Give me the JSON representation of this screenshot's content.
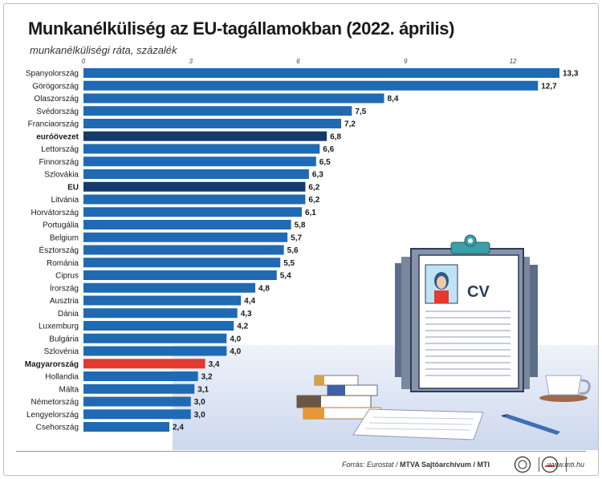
{
  "title": "Munkanélküliség az EU-tagállamokban (2022. április)",
  "subtitle": "munkanélküliségi ráta, százalék",
  "colors": {
    "bar": "#1f6ab3",
    "bar_highlight": "#163a6b",
    "bar_hungary": "#e23a2e",
    "text": "#1a1a1a"
  },
  "chart_data": {
    "type": "bar",
    "orientation": "horizontal",
    "xlim": [
      0,
      13.3
    ],
    "ticks": [
      0,
      3,
      6,
      9,
      12
    ],
    "tick_labels": [
      "0",
      "3",
      "6",
      "9",
      "12"
    ],
    "grid": false,
    "categories": [
      "Spanyolország",
      "Görögország",
      "Olaszország",
      "Svédország",
      "Franciaország",
      "euróövezet",
      "Lettország",
      "Finnország",
      "Szlovákia",
      "EU",
      "Litvánia",
      "Horvátország",
      "Portugália",
      "Belgium",
      "Észtország",
      "Románia",
      "Ciprus",
      "Írország",
      "Ausztria",
      "Dánia",
      "Luxemburg",
      "Bulgária",
      "Szlovénia",
      "Magyarország",
      "Hollandia",
      "Málta",
      "Németország",
      "Lengyelország",
      "Csehország"
    ],
    "values": [
      13.3,
      12.7,
      8.4,
      7.5,
      7.2,
      6.8,
      6.6,
      6.5,
      6.3,
      6.2,
      6.2,
      6.1,
      5.8,
      5.7,
      5.6,
      5.5,
      5.4,
      4.8,
      4.4,
      4.3,
      4.2,
      4.0,
      4.0,
      3.4,
      3.2,
      3.1,
      3.0,
      3.0,
      2.4
    ],
    "value_labels": [
      "13,3",
      "12,7",
      "8,4",
      "7,5",
      "7,2",
      "6,8",
      "6,6",
      "6,5",
      "6,3",
      "6,2",
      "6,2",
      "6,1",
      "5,8",
      "5,7",
      "5,6",
      "5,5",
      "5,4",
      "4,8",
      "4,4",
      "4,3",
      "4,2",
      "4,0",
      "4,0",
      "3,4",
      "3,2",
      "3,1",
      "3,0",
      "3,0",
      "2,4"
    ],
    "highlight_dark": [
      "euróövezet",
      "EU"
    ],
    "highlight_red": [
      "Magyarország"
    ]
  },
  "illustration": {
    "cv_label": "CV",
    "icons": [
      "clipboard-icon",
      "cv-portrait-icon",
      "book-stack-icon",
      "coffee-cup-icon",
      "paper-sheet-icon",
      "pencil-icon"
    ]
  },
  "footer": {
    "source_prefix": "Forrás: Eurostat / ",
    "source_bold": "MTVA Sajtóarchívum / MTI",
    "url": "www.mti.hu"
  }
}
